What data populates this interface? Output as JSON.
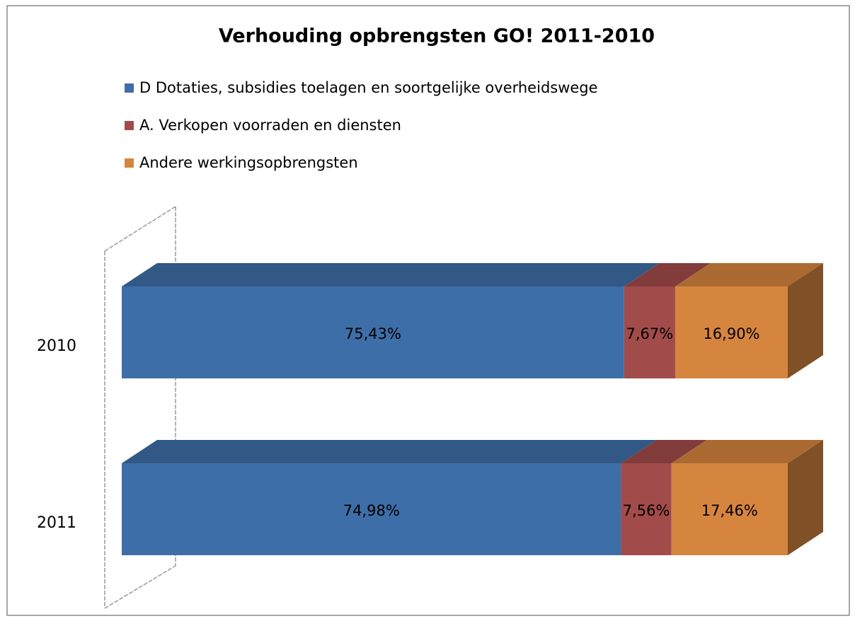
{
  "chart_data": {
    "type": "bar3d_stacked_horizontal",
    "title": "Verhouding opbrengsten GO! 2011-2010",
    "categories": [
      "2010",
      "2011"
    ],
    "series": [
      {
        "name": "D Dotaties, subsidies toelagen en soortgelijke overheidswege",
        "color": "#3e6ea8",
        "values": [
          75.43,
          74.98
        ],
        "value_labels": [
          "75,43%",
          "74,98%"
        ]
      },
      {
        "name": "A. Verkopen voorraden en diensten",
        "color": "#a24b4b",
        "values": [
          7.67,
          7.56
        ],
        "value_labels": [
          "7,67%",
          "7,56%"
        ]
      },
      {
        "name": "Andere werkingsopbrengsten",
        "color": "#d6853f",
        "values": [
          16.9,
          17.46
        ],
        "value_labels": [
          "16,90%",
          "17,46%"
        ]
      }
    ],
    "xlim": [
      0,
      100
    ],
    "legend": "top"
  }
}
